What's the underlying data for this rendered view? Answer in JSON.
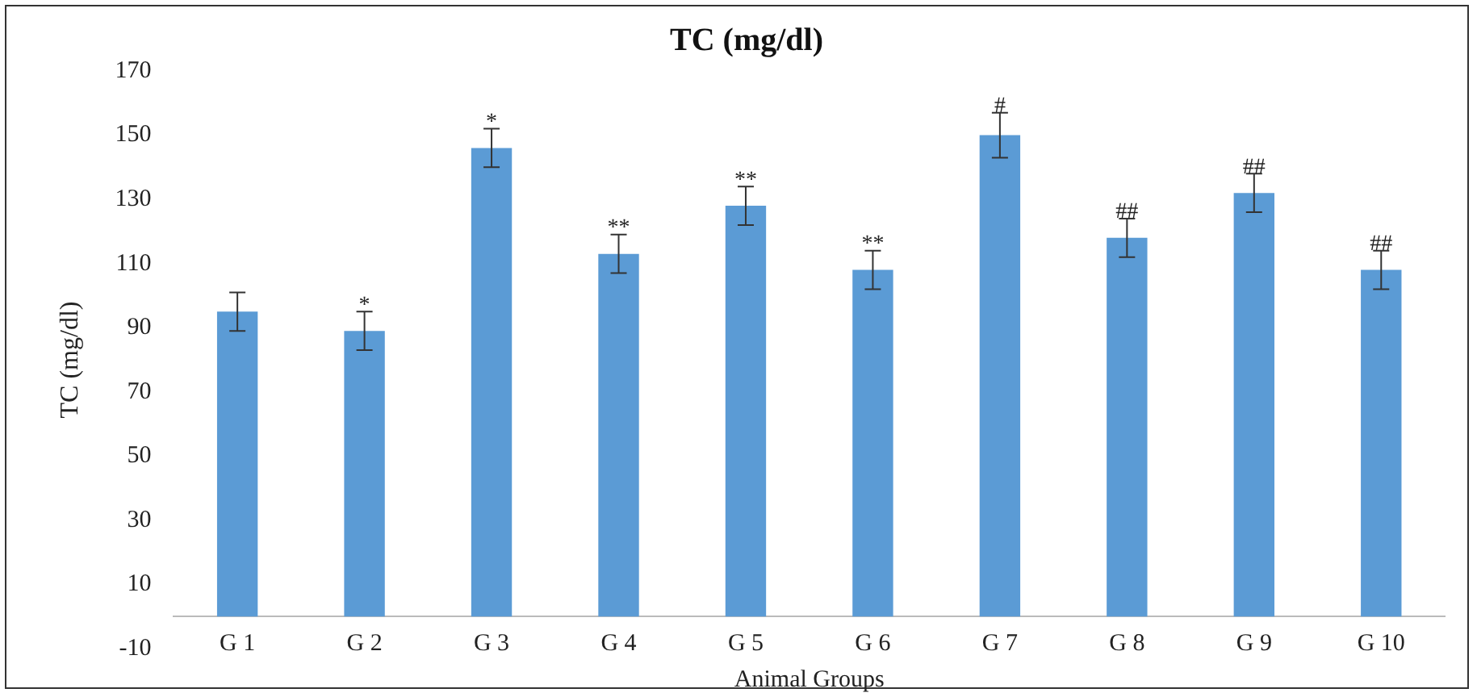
{
  "chart_data": {
    "type": "bar",
    "title": "TC (mg/dl)",
    "xlabel": "Animal Groups",
    "ylabel": "TC (mg/dl)",
    "categories": [
      "G 1",
      "G 2",
      "G 3",
      "G 4",
      "G 5",
      "G 6",
      "G 7",
      "G 8",
      "G 9",
      "G 10"
    ],
    "values": [
      95,
      89,
      146,
      113,
      128,
      108,
      150,
      118,
      132,
      108
    ],
    "errors": [
      6,
      6,
      6,
      6,
      6,
      6,
      7,
      6,
      6,
      6
    ],
    "color": "#5b9bd5",
    "ylim": [
      -10,
      170
    ],
    "yticks": [
      -10,
      10,
      30,
      50,
      70,
      90,
      110,
      130,
      150,
      170
    ],
    "grid": false,
    "legend": false,
    "annotations": [
      {
        "text": "*",
        "x": "G 2",
        "y": 95
      },
      {
        "text": "*",
        "x": "G 3",
        "y": 152
      },
      {
        "text": "**",
        "x": "G 4",
        "y": 119
      },
      {
        "text": "**",
        "x": "G 5",
        "y": 134
      },
      {
        "text": "**",
        "x": "G 6",
        "y": 114
      },
      {
        "text": "#",
        "x": "G 7",
        "y": 157
      },
      {
        "text": "##",
        "x": "G 8",
        "y": 124
      },
      {
        "text": "##",
        "x": "G 9",
        "y": 138
      },
      {
        "text": "##",
        "x": "G 10",
        "y": 114
      }
    ]
  }
}
